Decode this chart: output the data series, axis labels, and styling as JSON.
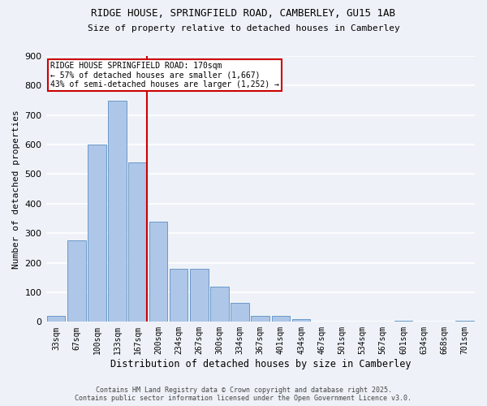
{
  "title1": "RIDGE HOUSE, SPRINGFIELD ROAD, CAMBERLEY, GU15 1AB",
  "title2": "Size of property relative to detached houses in Camberley",
  "xlabel": "Distribution of detached houses by size in Camberley",
  "ylabel": "Number of detached properties",
  "categories": [
    "33sqm",
    "67sqm",
    "100sqm",
    "133sqm",
    "167sqm",
    "200sqm",
    "234sqm",
    "267sqm",
    "300sqm",
    "334sqm",
    "367sqm",
    "401sqm",
    "434sqm",
    "467sqm",
    "501sqm",
    "534sqm",
    "567sqm",
    "601sqm",
    "634sqm",
    "668sqm",
    "701sqm"
  ],
  "values": [
    20,
    275,
    600,
    750,
    540,
    340,
    180,
    180,
    120,
    65,
    20,
    20,
    10,
    0,
    0,
    0,
    0,
    5,
    0,
    0,
    5
  ],
  "bar_color": "#aec6e8",
  "bar_edge_color": "#5a8fc2",
  "red_line_index": 4,
  "annotation_line1": "RIDGE HOUSE SPRINGFIELD ROAD: 170sqm",
  "annotation_line2": "← 57% of detached houses are smaller (1,667)",
  "annotation_line3": "43% of semi-detached houses are larger (1,252) →",
  "annotation_box_color": "#ffffff",
  "annotation_border_color": "#cc0000",
  "red_line_color": "#cc0000",
  "background_color": "#eef2f8",
  "grid_color": "#ffffff",
  "footer_text": "Contains HM Land Registry data © Crown copyright and database right 2025.\nContains public sector information licensed under the Open Government Licence v3.0.",
  "ylim": [
    0,
    900
  ],
  "yticks": [
    0,
    100,
    200,
    300,
    400,
    500,
    600,
    700,
    800,
    900
  ]
}
